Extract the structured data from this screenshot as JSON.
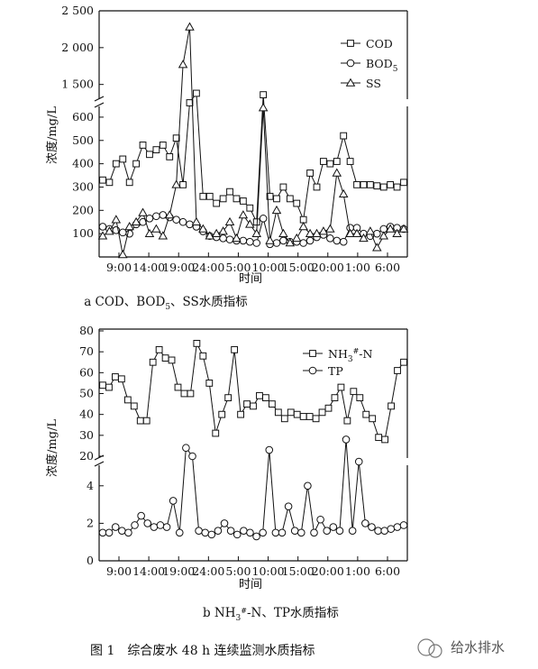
{
  "figure_caption": "图 1　综合废水 48 h 连续监测水质指标",
  "watermark": "给水排水",
  "chart_data": [
    {
      "type": "line",
      "caption": "a COD、BOD5、SS水质指标",
      "xlabel": "时间",
      "ylabel": "浓度/mg/L",
      "x_ticks": [
        "9:00",
        "14:00",
        "19:00",
        "24:00",
        "5:00",
        "10:00",
        "15:00",
        "20:00",
        "1:00",
        "6:00"
      ],
      "y_ticks_lower": [
        "100",
        "200",
        "300",
        "400",
        "500",
        "600"
      ],
      "y_ticks_upper": [
        "1 500",
        "2 000",
        "2 500"
      ],
      "axis_break": [
        650,
        1300
      ],
      "ylim": [
        0,
        2500
      ],
      "legend_position": "top-right",
      "series": [
        {
          "name": "COD",
          "marker": "square",
          "values": [
            330,
            320,
            400,
            420,
            320,
            400,
            480,
            440,
            460,
            480,
            430,
            510,
            310,
            1200,
            1380,
            260,
            260,
            230,
            250,
            280,
            250,
            240,
            210,
            150,
            1360,
            260,
            250,
            300,
            250,
            230,
            160,
            360,
            300,
            410,
            400,
            410,
            520,
            410,
            310,
            310,
            310,
            305,
            300,
            310,
            300,
            320
          ]
        },
        {
          "name": "BOD5",
          "marker": "circle",
          "values": [
            130,
            120,
            115,
            105,
            100,
            140,
            150,
            165,
            175,
            180,
            170,
            160,
            150,
            140,
            130,
            110,
            90,
            85,
            80,
            75,
            70,
            70,
            65,
            60,
            165,
            55,
            60,
            70,
            65,
            65,
            60,
            70,
            85,
            95,
            80,
            70,
            65,
            125,
            125,
            100,
            90,
            100,
            120,
            130,
            125,
            120
          ]
        },
        {
          "name": "SS",
          "marker": "triangle",
          "values": [
            90,
            110,
            160,
            10,
            130,
            150,
            190,
            100,
            120,
            90,
            180,
            310,
            1770,
            2280,
            150,
            120,
            90,
            100,
            110,
            150,
            80,
            180,
            140,
            100,
            640,
            70,
            200,
            100,
            60,
            80,
            130,
            100,
            100,
            110,
            120,
            360,
            270,
            100,
            100,
            80,
            110,
            40,
            90,
            120,
            100,
            120
          ]
        }
      ]
    },
    {
      "type": "line",
      "caption": "b NH3#-N、TP水质指标",
      "xlabel": "时间",
      "ylabel": "浓度/mg/L",
      "x_ticks": [
        "9:00",
        "14:00",
        "19:00",
        "24:00",
        "5:00",
        "10:00",
        "15:00",
        "20:00",
        "1:00",
        "6:00"
      ],
      "y_ticks_lower": [
        "0",
        "2",
        "4"
      ],
      "y_ticks_upper": [
        "20",
        "30",
        "40",
        "50",
        "60",
        "70",
        "80"
      ],
      "axis_break": [
        5,
        20
      ],
      "ylim": [
        0,
        80
      ],
      "legend_position": "top-right",
      "series": [
        {
          "name": "NH3#-N",
          "marker": "square",
          "values": [
            54,
            53,
            58,
            57,
            47,
            44,
            37,
            37,
            65,
            71,
            67,
            66,
            53,
            50,
            50,
            74,
            68,
            55,
            31,
            40,
            48,
            71,
            40,
            45,
            44,
            49,
            48,
            45,
            41,
            38,
            41,
            40,
            39,
            39,
            38,
            41,
            43,
            48,
            53,
            37,
            51,
            48,
            40,
            38,
            29,
            28,
            44,
            61,
            65
          ]
        },
        {
          "name": "TP",
          "marker": "circle",
          "values": [
            1.5,
            1.5,
            1.8,
            1.6,
            1.5,
            1.9,
            2.4,
            2.0,
            1.8,
            1.9,
            1.8,
            3.2,
            1.5,
            24,
            20,
            1.6,
            1.5,
            1.4,
            1.6,
            2.0,
            1.6,
            1.4,
            1.6,
            1.5,
            1.3,
            1.5,
            23,
            1.5,
            1.5,
            2.9,
            1.6,
            1.5,
            4.0,
            1.5,
            2.2,
            1.6,
            1.8,
            1.6,
            28,
            1.6,
            5.1,
            2.0,
            1.8,
            1.6,
            1.6,
            1.7,
            1.8,
            1.9
          ]
        }
      ]
    }
  ]
}
